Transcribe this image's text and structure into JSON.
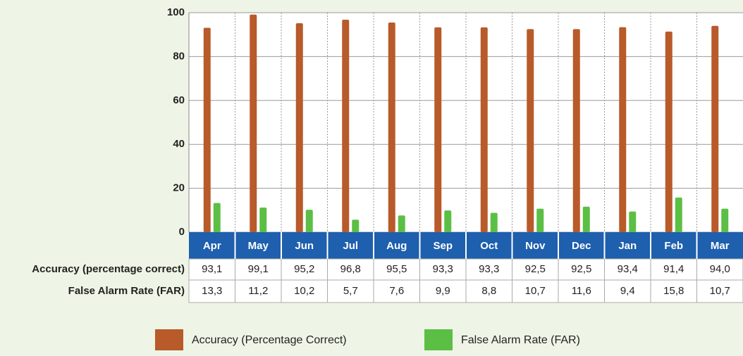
{
  "chart_data": {
    "type": "bar",
    "categories": [
      "Apr",
      "May",
      "Jun",
      "Jul",
      "Aug",
      "Sep",
      "Oct",
      "Nov",
      "Dec",
      "Jan",
      "Feb",
      "Mar"
    ],
    "row_labels": [
      "Accuracy (percentage correct)",
      "False Alarm Rate (FAR)"
    ],
    "series": [
      {
        "name": "Accuracy (Percentage Correct)",
        "color": "#b85a2a",
        "values": [
          93.1,
          99.1,
          95.2,
          96.8,
          95.5,
          93.3,
          93.3,
          92.5,
          92.5,
          93.4,
          91.4,
          94.0
        ],
        "value_labels": [
          "93,1",
          "99,1",
          "95,2",
          "96,8",
          "95,5",
          "93,3",
          "93,3",
          "92,5",
          "92,5",
          "93,4",
          "91,4",
          "94,0"
        ]
      },
      {
        "name": "False Alarm Rate (FAR)",
        "color": "#5cbf45",
        "values": [
          13.3,
          11.2,
          10.2,
          5.7,
          7.6,
          9.9,
          8.8,
          10.7,
          11.6,
          9.4,
          15.8,
          10.7
        ],
        "value_labels": [
          "13,3",
          "11,2",
          "10,2",
          "5,7",
          "7,6",
          "9,9",
          "8,8",
          "10,7",
          "11,6",
          "9,4",
          "15,8",
          "10,7"
        ]
      }
    ],
    "ylim": [
      0,
      100
    ],
    "yticks": [
      0,
      20,
      40,
      60,
      80,
      100
    ],
    "grid": true
  }
}
